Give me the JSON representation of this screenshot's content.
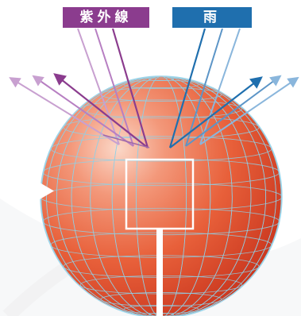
{
  "labels": {
    "uv": "紫外線",
    "rain": "雨"
  },
  "colors": {
    "uv_purple": "#8b3c8e",
    "uv_light": "#c8a0d0",
    "rain_blue": "#1f6fae",
    "rain_light": "#8ab6dc",
    "sphere": "#e6552e",
    "grid": "#8fd0e6"
  }
}
